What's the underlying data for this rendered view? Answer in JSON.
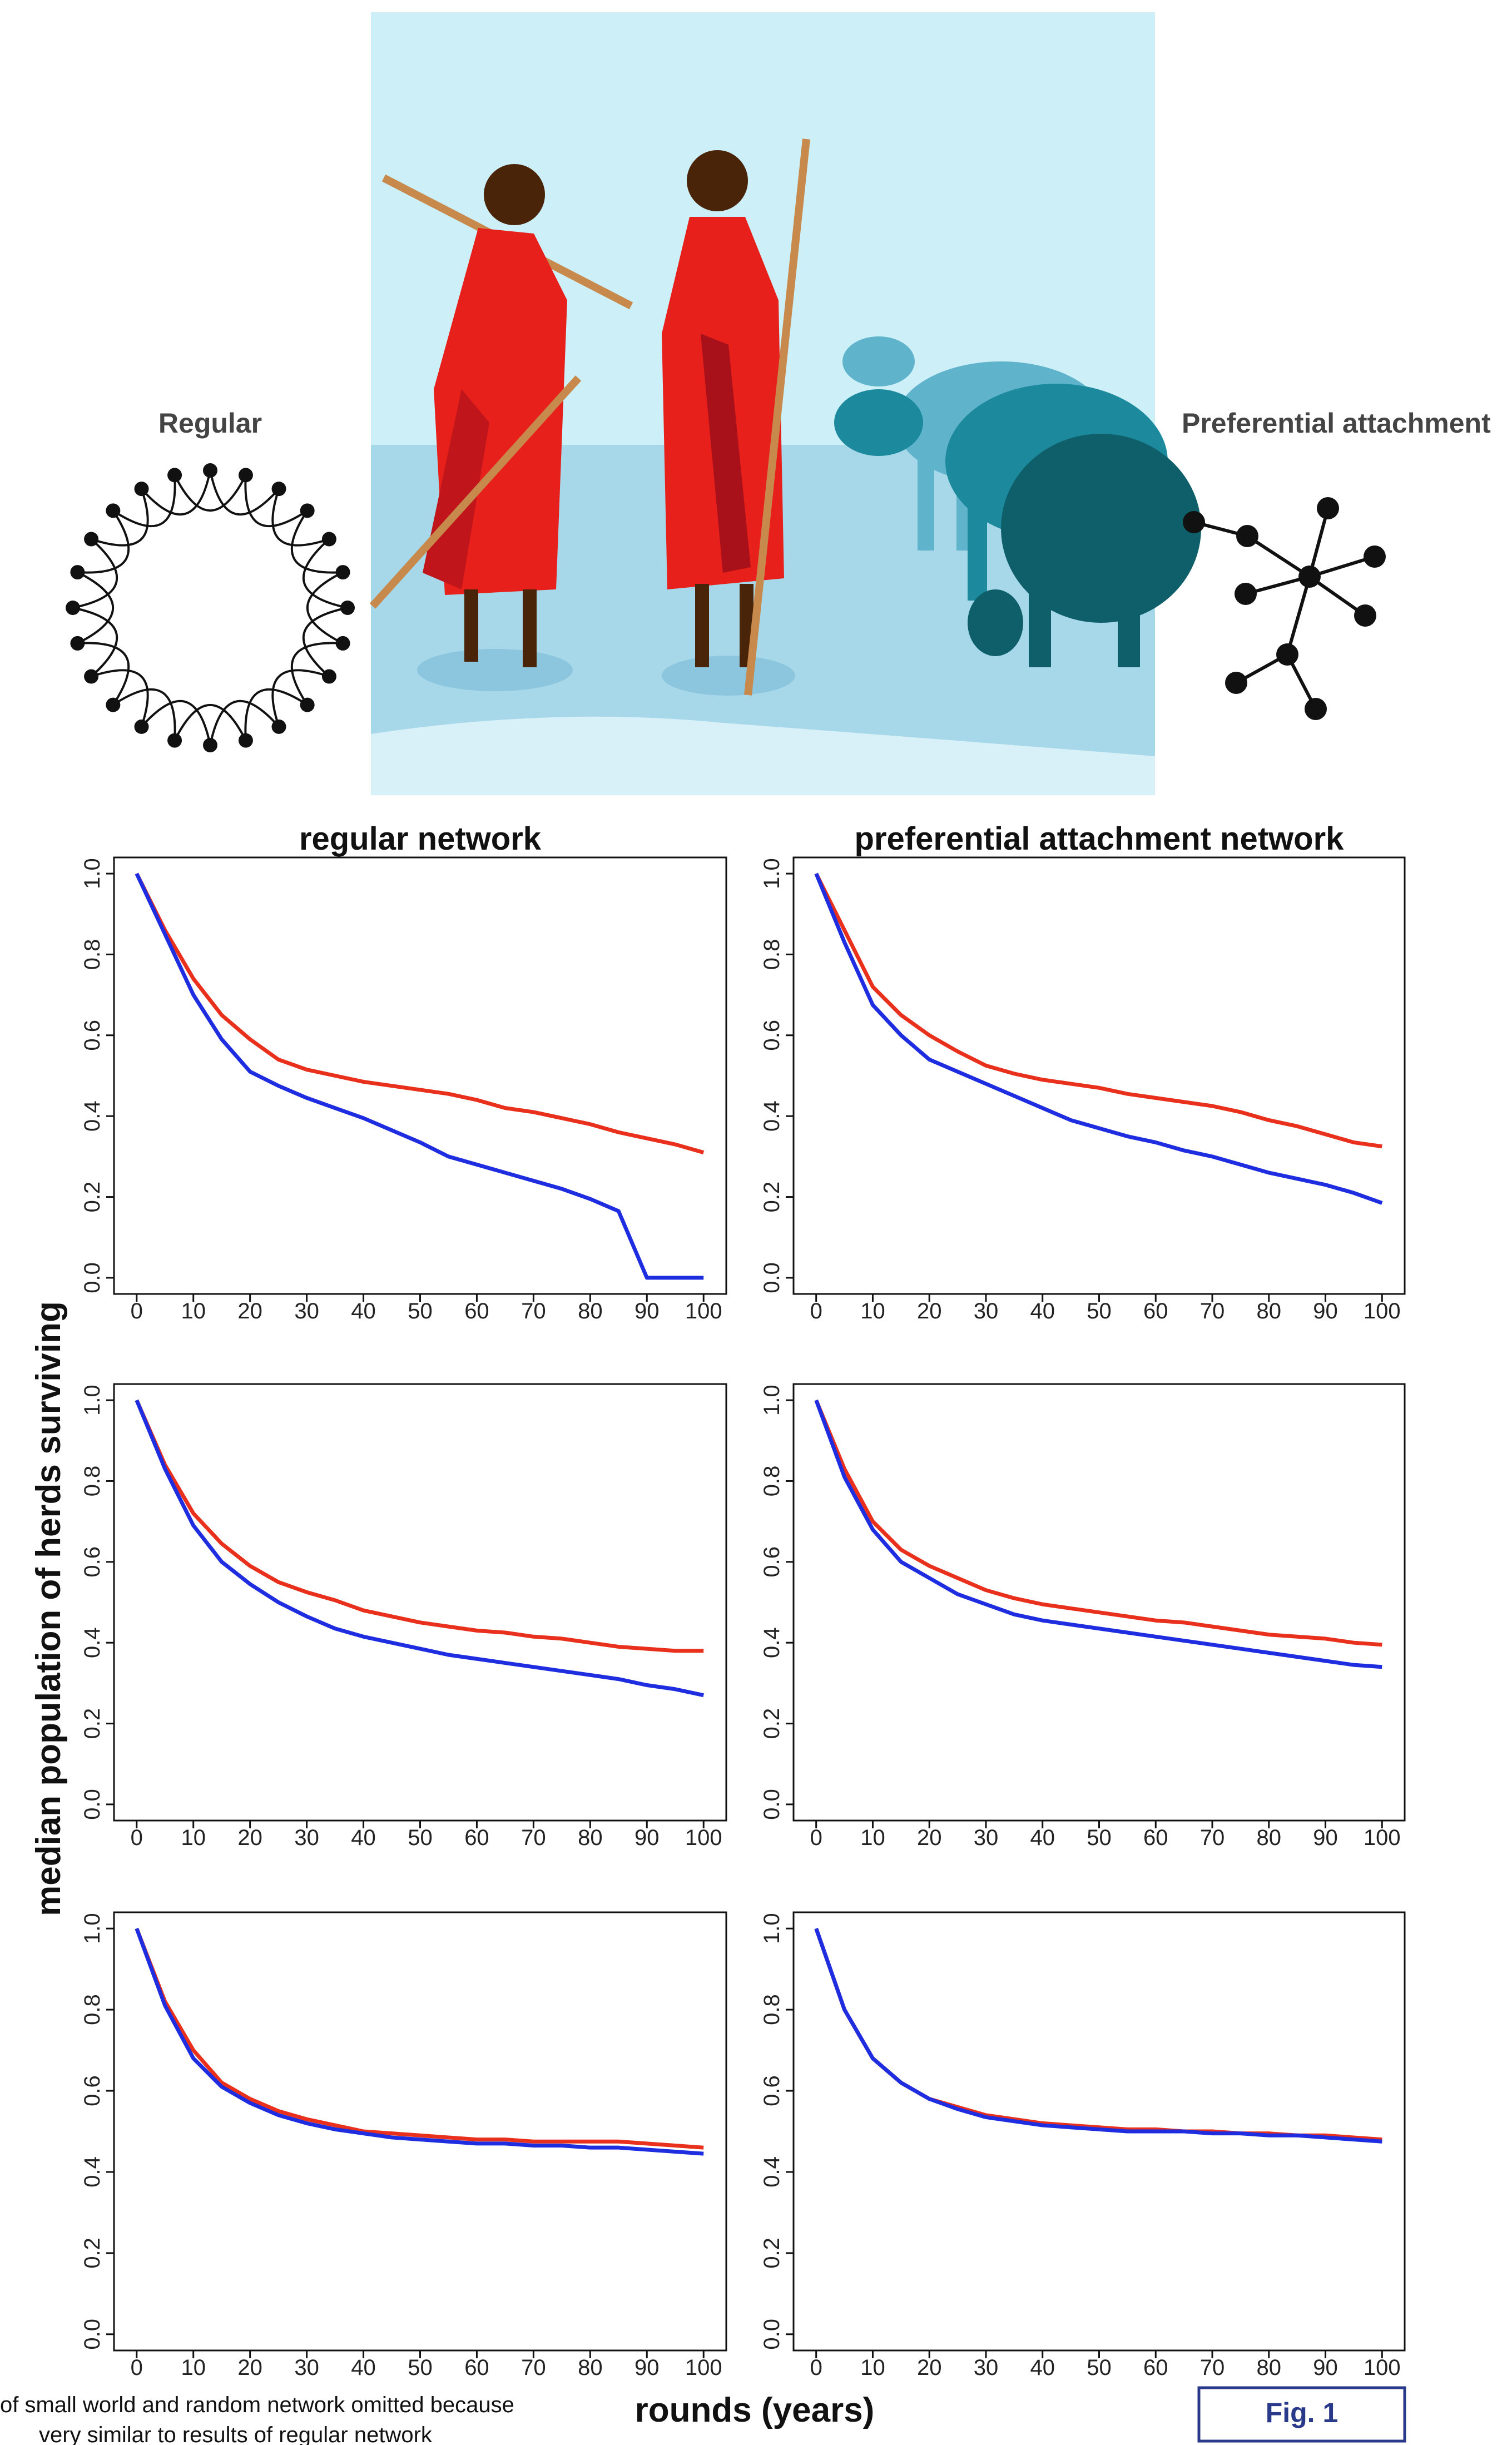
{
  "labels": {
    "regular": "Regular",
    "preferential": "Preferential attachment",
    "y_axis": "median population of herds surviving",
    "x_axis": "rounds (years)",
    "figure": "Fig. 1"
  },
  "footnote": [
    "of small world and random network omitted because",
    "very similar to results of regular network"
  ],
  "chart_data": [
    {
      "type": "line",
      "title": "regular network",
      "x": [
        0,
        5,
        10,
        15,
        20,
        25,
        30,
        35,
        40,
        45,
        50,
        55,
        60,
        65,
        70,
        75,
        80,
        85,
        90,
        95,
        100
      ],
      "xlim": [
        -4,
        104
      ],
      "ylim": [
        -0.04,
        1.04
      ],
      "xticks": [
        0,
        10,
        20,
        30,
        40,
        50,
        60,
        70,
        80,
        90,
        100
      ],
      "yticks": [
        {
          "value": 0,
          "label": "0.0"
        },
        0.2,
        0.4,
        0.6,
        0.8,
        {
          "value": 1,
          "label": "1.0"
        }
      ],
      "series": [
        {
          "color": "#e8301c",
          "values": [
            1.0,
            0.86,
            0.74,
            0.65,
            0.59,
            0.54,
            0.515,
            0.5,
            0.485,
            0.475,
            0.465,
            0.455,
            0.44,
            0.42,
            0.41,
            0.395,
            0.38,
            0.36,
            0.345,
            0.33,
            0.31
          ]
        },
        {
          "color": "#1f2de0",
          "values": [
            1.0,
            0.85,
            0.7,
            0.59,
            0.51,
            0.475,
            0.445,
            0.42,
            0.395,
            0.365,
            0.335,
            0.3,
            0.28,
            0.26,
            0.24,
            0.22,
            0.195,
            0.165,
            0.0,
            0.0,
            0.0
          ]
        }
      ]
    },
    {
      "type": "line",
      "title": "preferential attachment network",
      "x": [
        0,
        5,
        10,
        15,
        20,
        25,
        30,
        35,
        40,
        45,
        50,
        55,
        60,
        65,
        70,
        75,
        80,
        85,
        90,
        95,
        100
      ],
      "xlim": [
        -4,
        104
      ],
      "ylim": [
        -0.04,
        1.04
      ],
      "xticks": [
        0,
        10,
        20,
        30,
        40,
        50,
        60,
        70,
        80,
        90,
        100
      ],
      "yticks": [
        {
          "value": 0,
          "label": "0.0"
        },
        0.2,
        0.4,
        0.6,
        0.8,
        {
          "value": 1,
          "label": "1.0"
        }
      ],
      "series": [
        {
          "color": "#e8301c",
          "values": [
            1.0,
            0.86,
            0.72,
            0.65,
            0.6,
            0.56,
            0.525,
            0.505,
            0.49,
            0.48,
            0.47,
            0.455,
            0.445,
            0.435,
            0.425,
            0.41,
            0.39,
            0.375,
            0.355,
            0.335,
            0.325
          ]
        },
        {
          "color": "#1f2de0",
          "values": [
            1.0,
            0.83,
            0.675,
            0.6,
            0.54,
            0.51,
            0.48,
            0.45,
            0.42,
            0.39,
            0.37,
            0.35,
            0.335,
            0.315,
            0.3,
            0.28,
            0.26,
            0.245,
            0.23,
            0.21,
            0.185
          ]
        }
      ]
    },
    {
      "type": "line",
      "x": [
        0,
        5,
        10,
        15,
        20,
        25,
        30,
        35,
        40,
        45,
        50,
        55,
        60,
        65,
        70,
        75,
        80,
        85,
        90,
        95,
        100
      ],
      "xlim": [
        -4,
        104
      ],
      "ylim": [
        -0.04,
        1.04
      ],
      "xticks": [
        0,
        10,
        20,
        30,
        40,
        50,
        60,
        70,
        80,
        90,
        100
      ],
      "yticks": [
        {
          "value": 0,
          "label": "0.0"
        },
        0.2,
        0.4,
        0.6,
        0.8,
        {
          "value": 1,
          "label": "1.0"
        }
      ],
      "series": [
        {
          "color": "#e8301c",
          "values": [
            1.0,
            0.84,
            0.72,
            0.645,
            0.59,
            0.55,
            0.525,
            0.505,
            0.48,
            0.465,
            0.45,
            0.44,
            0.43,
            0.425,
            0.415,
            0.41,
            0.4,
            0.39,
            0.385,
            0.38,
            0.38
          ]
        },
        {
          "color": "#1f2de0",
          "values": [
            1.0,
            0.83,
            0.69,
            0.6,
            0.545,
            0.5,
            0.465,
            0.435,
            0.415,
            0.4,
            0.385,
            0.37,
            0.36,
            0.35,
            0.34,
            0.33,
            0.32,
            0.31,
            0.295,
            0.285,
            0.27
          ]
        }
      ]
    },
    {
      "type": "line",
      "x": [
        0,
        5,
        10,
        15,
        20,
        25,
        30,
        35,
        40,
        45,
        50,
        55,
        60,
        65,
        70,
        75,
        80,
        85,
        90,
        95,
        100
      ],
      "xlim": [
        -4,
        104
      ],
      "ylim": [
        -0.04,
        1.04
      ],
      "xticks": [
        0,
        10,
        20,
        30,
        40,
        50,
        60,
        70,
        80,
        90,
        100
      ],
      "yticks": [
        {
          "value": 0,
          "label": "0.0"
        },
        0.2,
        0.4,
        0.6,
        0.8,
        {
          "value": 1,
          "label": "1.0"
        }
      ],
      "series": [
        {
          "color": "#e8301c",
          "values": [
            1.0,
            0.83,
            0.7,
            0.63,
            0.59,
            0.56,
            0.53,
            0.51,
            0.495,
            0.485,
            0.475,
            0.465,
            0.455,
            0.45,
            0.44,
            0.43,
            0.42,
            0.415,
            0.41,
            0.4,
            0.395
          ]
        },
        {
          "color": "#1f2de0",
          "values": [
            1.0,
            0.81,
            0.68,
            0.6,
            0.56,
            0.52,
            0.495,
            0.47,
            0.455,
            0.445,
            0.435,
            0.425,
            0.415,
            0.405,
            0.395,
            0.385,
            0.375,
            0.365,
            0.355,
            0.345,
            0.34
          ]
        }
      ]
    },
    {
      "type": "line",
      "x": [
        0,
        5,
        10,
        15,
        20,
        25,
        30,
        35,
        40,
        45,
        50,
        55,
        60,
        65,
        70,
        75,
        80,
        85,
        90,
        95,
        100
      ],
      "xlim": [
        -4,
        104
      ],
      "ylim": [
        -0.04,
        1.04
      ],
      "xticks": [
        0,
        10,
        20,
        30,
        40,
        50,
        60,
        70,
        80,
        90,
        100
      ],
      "yticks": [
        {
          "value": 0,
          "label": "0.0"
        },
        0.2,
        0.4,
        0.6,
        0.8,
        {
          "value": 1,
          "label": "1.0"
        }
      ],
      "series": [
        {
          "color": "#e8301c",
          "values": [
            1.0,
            0.82,
            0.7,
            0.62,
            0.58,
            0.55,
            0.53,
            0.515,
            0.5,
            0.495,
            0.49,
            0.485,
            0.48,
            0.48,
            0.475,
            0.475,
            0.475,
            0.475,
            0.47,
            0.465,
            0.46
          ]
        },
        {
          "color": "#1f2de0",
          "values": [
            1.0,
            0.81,
            0.68,
            0.61,
            0.57,
            0.54,
            0.52,
            0.505,
            0.495,
            0.485,
            0.48,
            0.475,
            0.47,
            0.47,
            0.465,
            0.465,
            0.46,
            0.46,
            0.455,
            0.45,
            0.445
          ]
        }
      ]
    },
    {
      "type": "line",
      "x": [
        0,
        5,
        10,
        15,
        20,
        25,
        30,
        35,
        40,
        45,
        50,
        55,
        60,
        65,
        70,
        75,
        80,
        85,
        90,
        95,
        100
      ],
      "xlim": [
        -4,
        104
      ],
      "ylim": [
        -0.04,
        1.04
      ],
      "xticks": [
        0,
        10,
        20,
        30,
        40,
        50,
        60,
        70,
        80,
        90,
        100
      ],
      "yticks": [
        {
          "value": 0,
          "label": "0.0"
        },
        0.2,
        0.4,
        0.6,
        0.8,
        {
          "value": 1,
          "label": "1.0"
        }
      ],
      "series": [
        {
          "color": "#e8301c",
          "values": [
            1.0,
            0.8,
            0.68,
            0.62,
            0.58,
            0.56,
            0.54,
            0.53,
            0.52,
            0.515,
            0.51,
            0.505,
            0.505,
            0.5,
            0.5,
            0.495,
            0.495,
            0.49,
            0.49,
            0.485,
            0.48
          ]
        },
        {
          "color": "#1f2de0",
          "values": [
            1.0,
            0.8,
            0.68,
            0.62,
            0.58,
            0.555,
            0.535,
            0.525,
            0.515,
            0.51,
            0.505,
            0.5,
            0.5,
            0.5,
            0.495,
            0.495,
            0.49,
            0.49,
            0.485,
            0.48,
            0.475
          ]
        }
      ]
    }
  ]
}
